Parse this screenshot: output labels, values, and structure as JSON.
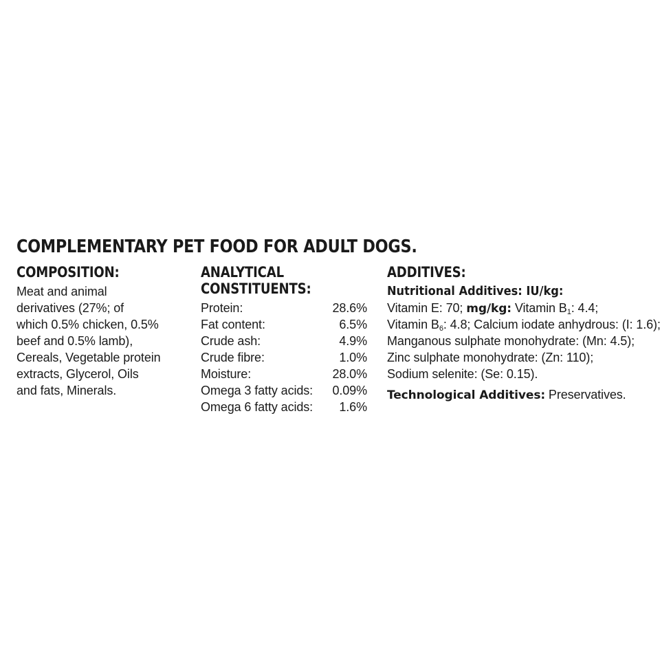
{
  "title": "COMPLEMENTARY PET FOOD FOR ADULT DOGS.",
  "composition": {
    "heading": "COMPOSITION:",
    "lines": [
      "Meat and animal",
      "derivatives (27%; of",
      "which 0.5% chicken, 0.5%",
      "beef and 0.5% lamb),",
      "Cereals, Vegetable protein",
      "extracts, Glycerol, Oils",
      "and fats, Minerals."
    ]
  },
  "analytical": {
    "heading_line1": "ANALYTICAL",
    "heading_line2": "CONSTITUENTS:",
    "rows": [
      {
        "name": "Protein:",
        "value": "28.6%"
      },
      {
        "name": "Fat content:",
        "value": "6.5%"
      },
      {
        "name": "Crude ash:",
        "value": "4.9%"
      },
      {
        "name": "Crude fibre:",
        "value": "1.0%"
      },
      {
        "name": "Moisture:",
        "value": "28.0%"
      },
      {
        "name": "Omega 3 fatty acids:",
        "value": "0.09%"
      },
      {
        "name": "Omega 6 fatty acids:",
        "value": "1.6%"
      }
    ]
  },
  "additives": {
    "heading": "ADDITIVES:",
    "nutritional_label": "Nutritional Additives: IU/kg:",
    "line1_a": "Vitamin E: 70; ",
    "line1_b": "mg/kg:",
    "line1_c": " Vitamin B",
    "line1_sub": "1",
    "line1_d": ": 4.4;",
    "line2_a": "Vitamin B",
    "line2_sub": "6",
    "line2_b": ": 4.8; Calcium iodate anhydrous: (I: 1.6);",
    "line3": "Manganous sulphate monohydrate: (Mn: 4.5);",
    "line4": "Zinc sulphate monohydrate: (Zn: 110);",
    "line5": "Sodium selenite: (Se: 0.15).",
    "technological_label": "Technological Additives:",
    "technological_value": " Preservatives."
  }
}
